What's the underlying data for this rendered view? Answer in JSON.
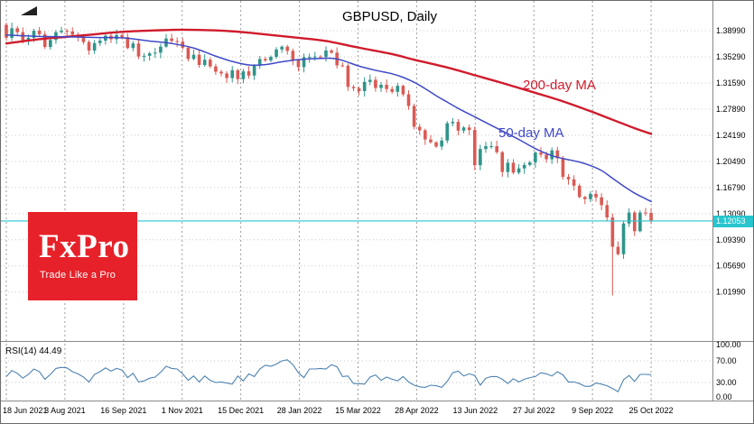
{
  "chart": {
    "title": "GBPUSD, Daily",
    "ma200_label": "200-day MA",
    "ma50_label": "50-day MA",
    "current_price_label": "1.12053",
    "colors": {
      "up_candle": "#2f948a",
      "down_candle": "#da5a54",
      "ma200": "#d01b2c",
      "ma50": "#3f49c6",
      "price_line": "#27c5ce",
      "rsi_line": "#4d82b0",
      "grid_vertical": "#9b9b9b",
      "grid_horizontal": "#c9c9c9",
      "logo_bg": "#e62129"
    }
  },
  "axes": {
    "y_tick_labels": [
      "1.38990",
      "1.35290",
      "1.31590",
      "1.27890",
      "1.24190",
      "1.20490",
      "1.16790",
      "1.13090",
      "1.09390",
      "1.05690",
      "1.01990"
    ],
    "x_tick_labels": [
      "18 Jun 2021",
      "3 Aug 2021",
      "16 Sep 2021",
      "1 Nov 2021",
      "15 Dec 2021",
      "28 Jan 2022",
      "15 Mar 2022",
      "28 Apr 2022",
      "13 Jun 2022",
      "27 Jul 2022",
      "9 Sep 2022",
      "25 Oct 2022"
    ],
    "rsi_tick_labels": [
      "100.00",
      "70.00",
      "30.00",
      "0.00"
    ]
  },
  "rsi_panel": {
    "label": "RSI(14) 44.49"
  },
  "logo": {
    "brand": "FxPro",
    "tagline": "Trade Like a Pro"
  },
  "chart_data": {
    "type": "candlestick",
    "symbol": "GBPUSD",
    "timeframe": "Daily",
    "title": "GBPUSD, Daily",
    "x_range": [
      "18 Jun 2021",
      "25 Oct 2022"
    ],
    "y_ticks": [
      1.3899,
      1.3529,
      1.3159,
      1.2789,
      1.2419,
      1.2049,
      1.1679,
      1.1309,
      1.0939,
      1.0569,
      1.0199
    ],
    "price_axis_top": 1.4323,
    "price_axis_bottom": 0.9505,
    "first_open": 1.3985,
    "close": [
      1.38,
      1.3935,
      1.388,
      1.3765,
      1.38,
      1.39,
      1.385,
      1.367,
      1.377,
      1.388,
      1.39,
      1.389,
      1.3845,
      1.381,
      1.374,
      1.362,
      1.3725,
      1.376,
      1.383,
      1.378,
      1.384,
      1.381,
      1.3655,
      1.372,
      1.3535,
      1.3545,
      1.358,
      1.359,
      1.3675,
      1.379,
      1.3755,
      1.3745,
      1.366,
      1.35,
      1.356,
      1.3415,
      1.349,
      1.3395,
      1.332,
      1.3295,
      1.323,
      1.334,
      1.3215,
      1.3325,
      1.3265,
      1.341,
      1.35,
      1.348,
      1.353,
      1.3635,
      1.3675,
      1.3615,
      1.3485,
      1.3385,
      1.3525,
      1.353,
      1.3535,
      1.353,
      1.362,
      1.359,
      1.341,
      1.3405,
      1.3105,
      1.3085,
      1.3045,
      1.3175,
      1.3205,
      1.309,
      1.3135,
      1.3075,
      1.3035,
      1.312,
      1.3,
      1.2835,
      1.254,
      1.249,
      1.236,
      1.232,
      1.226,
      1.2345,
      1.259,
      1.261,
      1.2485,
      1.253,
      1.2495,
      1.1995,
      1.2225,
      1.2265,
      1.2265,
      1.218,
      1.19,
      1.203,
      1.189,
      1.195,
      1.2,
      1.2035,
      1.2175,
      1.2145,
      1.208,
      1.2205,
      1.2095,
      1.183,
      1.1795,
      1.1705,
      1.1545,
      1.1515,
      1.159,
      1.154,
      1.143,
      1.1255,
      1.084,
      1.0735,
      1.117,
      1.1325,
      1.106,
      1.1325,
      1.132,
      1.1205
    ],
    "flash_crash": {
      "index": 110,
      "low": 1.015
    },
    "current_price": 1.12053,
    "overlays": [
      {
        "name": "200-day MA",
        "color_key": "ma200",
        "points": [
          [
            0,
            1.372
          ],
          [
            6,
            1.378
          ],
          [
            11,
            1.3815
          ],
          [
            16,
            1.385
          ],
          [
            21,
            1.3885
          ],
          [
            27,
            1.3905
          ],
          [
            32,
            1.3915
          ],
          [
            38,
            1.3905
          ],
          [
            43,
            1.388
          ],
          [
            48,
            1.384
          ],
          [
            53,
            1.38
          ],
          [
            58,
            1.3755
          ],
          [
            64,
            1.366
          ],
          [
            70,
            1.357
          ],
          [
            74,
            1.349
          ],
          [
            80,
            1.338
          ],
          [
            85,
            1.327
          ],
          [
            90,
            1.316
          ],
          [
            96,
            1.302
          ],
          [
            101,
            1.29
          ],
          [
            106,
            1.276
          ],
          [
            110,
            1.264
          ],
          [
            114,
            1.252
          ],
          [
            117,
            1.244
          ]
        ]
      },
      {
        "name": "50-day MA",
        "color_key": "ma50",
        "points": [
          [
            0,
            1.384
          ],
          [
            6,
            1.382
          ],
          [
            11,
            1.3815
          ],
          [
            16,
            1.3805
          ],
          [
            21,
            1.38
          ],
          [
            26,
            1.3755
          ],
          [
            30,
            1.372
          ],
          [
            34,
            1.3655
          ],
          [
            38,
            1.354
          ],
          [
            41,
            1.3465
          ],
          [
            44,
            1.3415
          ],
          [
            47,
            1.342
          ],
          [
            50,
            1.346
          ],
          [
            53,
            1.349
          ],
          [
            56,
            1.3505
          ],
          [
            59,
            1.351
          ],
          [
            61,
            1.348
          ],
          [
            64,
            1.34
          ],
          [
            67,
            1.334
          ],
          [
            70,
            1.329
          ],
          [
            72,
            1.324
          ],
          [
            74,
            1.317
          ],
          [
            76,
            1.308
          ],
          [
            78,
            1.298
          ],
          [
            80,
            1.289
          ],
          [
            82,
            1.28
          ],
          [
            85,
            1.268
          ],
          [
            88,
            1.256
          ],
          [
            90,
            1.248
          ],
          [
            93,
            1.236
          ],
          [
            96,
            1.223
          ],
          [
            99,
            1.213
          ],
          [
            101,
            1.209
          ],
          [
            104,
            1.204
          ],
          [
            106,
            1.199
          ],
          [
            108,
            1.192
          ],
          [
            110,
            1.181
          ],
          [
            112,
            1.17
          ],
          [
            114,
            1.16
          ],
          [
            116,
            1.152
          ],
          [
            117,
            1.148
          ]
        ]
      }
    ],
    "indicator": {
      "name": "RSI",
      "period": 14,
      "current": 44.49,
      "range": [
        0,
        100
      ],
      "ticks": [
        100,
        70,
        30,
        0
      ],
      "values": [
        41,
        52,
        47,
        38,
        45,
        55,
        50,
        36,
        45,
        56,
        58,
        57,
        50,
        46,
        40,
        31,
        45,
        50,
        57,
        51,
        56,
        53,
        39,
        47,
        31,
        33,
        38,
        40,
        49,
        60,
        56,
        55,
        46,
        34,
        42,
        31,
        42,
        34,
        30,
        31,
        29,
        27,
        42,
        33,
        46,
        41,
        55,
        62,
        60,
        64,
        70,
        72,
        63,
        48,
        39,
        55,
        55,
        56,
        55,
        63,
        59,
        41,
        42,
        28,
        28,
        27,
        40,
        44,
        34,
        40,
        36,
        33,
        41,
        31,
        25,
        22,
        21,
        25,
        24,
        21,
        32,
        48,
        51,
        42,
        46,
        43,
        25,
        38,
        41,
        41,
        36,
        28,
        37,
        31,
        36,
        39,
        41,
        48,
        46,
        42,
        50,
        44,
        31,
        31,
        28,
        23,
        23,
        29,
        27,
        24,
        19,
        13,
        35,
        43,
        32,
        45,
        45,
        44.49
      ]
    }
  }
}
